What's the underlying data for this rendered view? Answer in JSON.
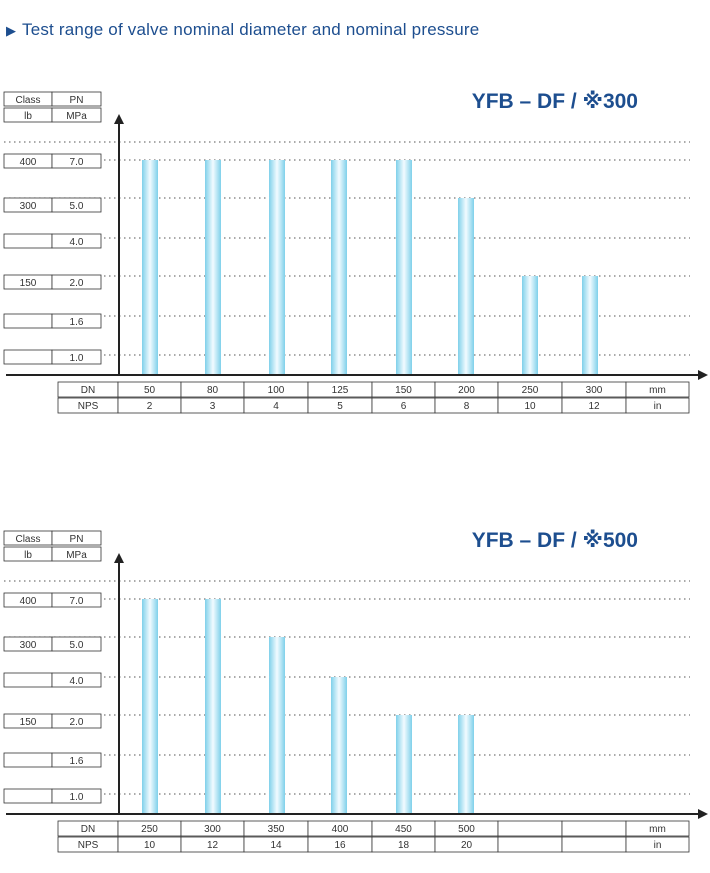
{
  "heading": {
    "icon": "triangle-right-icon",
    "text": "Test range of valve nominal diameter and nominal pressure"
  },
  "colors": {
    "title": "#1d4e8f",
    "bar_edge": "#7fd0ea",
    "bar_center": "#f2fbff",
    "grid": "#555555",
    "axis": "#222222"
  },
  "chart_data": [
    {
      "type": "bar",
      "title": "YFB – DF / ※300",
      "header": [
        [
          "Class",
          "PN"
        ],
        [
          "lb",
          "MPa"
        ]
      ],
      "y_levels": [
        {
          "class": "400",
          "pn": "7.0"
        },
        {
          "class": "300",
          "pn": "5.0"
        },
        {
          "class": "",
          "pn": "4.0"
        },
        {
          "class": "150",
          "pn": "2.0"
        },
        {
          "class": "",
          "pn": "1.6"
        },
        {
          "class": "",
          "pn": "1.0"
        }
      ],
      "x_rows": [
        {
          "label": "DN",
          "values": [
            "50",
            "80",
            "100",
            "125",
            "150",
            "200",
            "250",
            "300"
          ],
          "unit": "mm"
        },
        {
          "label": "NPS",
          "values": [
            "2",
            "3",
            "4",
            "5",
            "6",
            "8",
            "10",
            "12"
          ],
          "unit": "in"
        }
      ],
      "categories": [
        "50",
        "80",
        "100",
        "125",
        "150",
        "200",
        "250",
        "300"
      ],
      "values": [
        7.0,
        7.0,
        7.0,
        7.0,
        7.0,
        5.0,
        2.0,
        2.0
      ],
      "ylabel_units": "MPa",
      "grid": true
    },
    {
      "type": "bar",
      "title": "YFB – DF / ※500",
      "header": [
        [
          "Class",
          "PN"
        ],
        [
          "lb",
          "MPa"
        ]
      ],
      "y_levels": [
        {
          "class": "400",
          "pn": "7.0"
        },
        {
          "class": "300",
          "pn": "5.0"
        },
        {
          "class": "",
          "pn": "4.0"
        },
        {
          "class": "150",
          "pn": "2.0"
        },
        {
          "class": "",
          "pn": "1.6"
        },
        {
          "class": "",
          "pn": "1.0"
        }
      ],
      "x_rows": [
        {
          "label": "DN",
          "values": [
            "250",
            "300",
            "350",
            "400",
            "450",
            "500",
            "",
            ""
          ],
          "unit": "mm"
        },
        {
          "label": "NPS",
          "values": [
            "10",
            "12",
            "14",
            "16",
            "18",
            "20",
            "",
            ""
          ],
          "unit": "in"
        }
      ],
      "categories": [
        "250",
        "300",
        "350",
        "400",
        "450",
        "500"
      ],
      "values": [
        7.0,
        7.0,
        5.0,
        4.0,
        2.0,
        2.0
      ],
      "ylabel_units": "MPa",
      "grid": true
    }
  ]
}
